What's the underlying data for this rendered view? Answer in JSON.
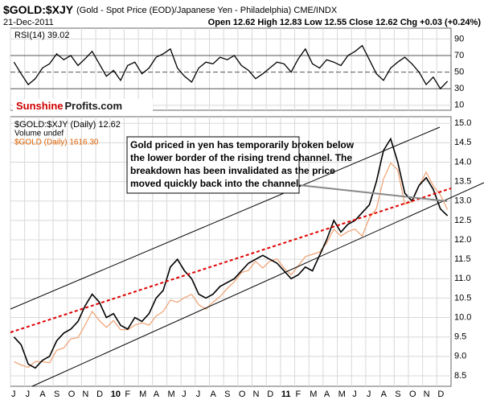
{
  "header": {
    "symbol": "$GOLD:$XJY",
    "description": "(Gold - Spot Price (EOD)/Japanese Yen - Philadelphia) CME/INDX",
    "date": "21-Dec-2011",
    "quote": "Open 12.62 High 12.83 Low 12.55 Close 12.62 Chg +0.03 (+0.24%)"
  },
  "logo": {
    "part1": "Sunshine",
    "part2": "Profits.com"
  },
  "chart_data": [
    {
      "type": "line",
      "label": "RSI(14) 39.02",
      "color": "#000000",
      "values": [
        62,
        48,
        35,
        42,
        55,
        60,
        72,
        65,
        70,
        58,
        66,
        75,
        60,
        45,
        52,
        40,
        58,
        62,
        48,
        55,
        68,
        72,
        78,
        55,
        45,
        38,
        55,
        62,
        60,
        68,
        65,
        70,
        58,
        52,
        42,
        48,
        55,
        62,
        60,
        50,
        66,
        78,
        60,
        55,
        65,
        62,
        58,
        70,
        75,
        82,
        65,
        48,
        40,
        55,
        62,
        68,
        60,
        50,
        35,
        44,
        30,
        39.02
      ],
      "ylim": [
        4,
        103
      ],
      "yticks": [
        90,
        70,
        50,
        30,
        10
      ]
    },
    {
      "type": "line",
      "legend_note": "Volume undef",
      "annotation": [
        "Gold priced in yen has temporarily broken below",
        "the lower border of the rising trend channel. The",
        "breakdown has been invalidated as the price",
        "moved quickly back into the channel."
      ],
      "categories": [
        "J",
        null,
        "J",
        null,
        "A",
        null,
        "S",
        null,
        "O",
        null,
        "N",
        null,
        "D",
        null,
        "10",
        null,
        "F",
        null,
        "M",
        null,
        "A",
        null,
        "M",
        null,
        "J",
        null,
        "J",
        null,
        "A",
        null,
        "S",
        null,
        "O",
        null,
        "N",
        null,
        "D",
        null,
        "11",
        null,
        "F",
        null,
        "M",
        null,
        "A",
        null,
        "M",
        null,
        "J",
        null,
        "J",
        null,
        "A",
        null,
        "S",
        null,
        "O",
        null,
        "N",
        null,
        "D",
        null
      ],
      "series": [
        {
          "name": "$GOLD:$XJY (Daily) 12.62",
          "color": "#000000",
          "values": [
            9.5,
            9.3,
            8.8,
            8.7,
            8.9,
            9.0,
            9.4,
            9.6,
            9.7,
            9.9,
            10.3,
            10.6,
            10.4,
            10.0,
            10.1,
            9.8,
            9.7,
            10.0,
            9.9,
            10.1,
            10.5,
            10.7,
            11.3,
            11.5,
            11.2,
            11.0,
            10.6,
            10.5,
            10.6,
            10.8,
            10.9,
            11.0,
            11.2,
            11.4,
            11.5,
            11.6,
            11.5,
            11.4,
            11.2,
            11.0,
            11.1,
            11.3,
            11.2,
            11.6,
            12.0,
            12.5,
            12.2,
            12.4,
            12.5,
            12.7,
            12.9,
            13.5,
            14.3,
            14.6,
            14.0,
            13.2,
            13.0,
            13.4,
            13.6,
            13.3,
            12.8,
            12.62
          ]
        },
        {
          "name": "$GOLD (Daily) 1616.30",
          "color": "#f0a070",
          "axis": "y2",
          "values": [
            950,
            935,
            925,
            950,
            950,
            945,
            1000,
            1010,
            1050,
            1055,
            1110,
            1170,
            1130,
            1100,
            1130,
            1090,
            1090,
            1110,
            1120,
            1110,
            1150,
            1170,
            1220,
            1210,
            1230,
            1245,
            1200,
            1180,
            1210,
            1235,
            1270,
            1300,
            1340,
            1350,
            1390,
            1360,
            1390,
            1400,
            1360,
            1330,
            1370,
            1410,
            1420,
            1430,
            1470,
            1530,
            1500,
            1520,
            1530,
            1500,
            1580,
            1620,
            1750,
            1820,
            1790,
            1640,
            1650,
            1720,
            1780,
            1720,
            1680,
            1616.3
          ]
        }
      ],
      "ylim": [
        8.23,
        15.17
      ],
      "y2lim": [
        842,
        2023
      ],
      "yticks": [
        8.5,
        {
          "value": 9,
          "label": "9.0"
        },
        9.5,
        {
          "value": 10,
          "label": "10.0"
        },
        10.5,
        {
          "value": 11,
          "label": "11.0"
        },
        11.5,
        {
          "value": 12,
          "label": "12.0"
        },
        12.5,
        {
          "value": 13,
          "label": "13.0"
        },
        13.5,
        {
          "value": 14,
          "label": "14.0"
        },
        14.5,
        {
          "value": 15,
          "label": "15.0"
        }
      ],
      "grid": true
    }
  ]
}
